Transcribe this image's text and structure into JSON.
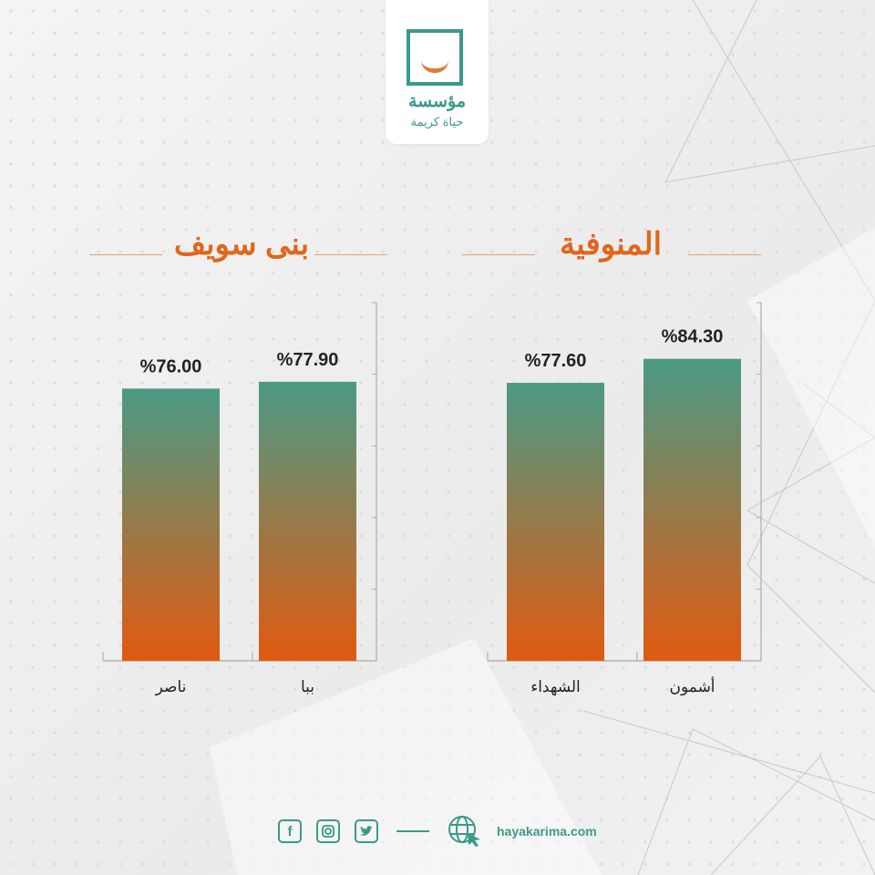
{
  "logo": {
    "line1": "مؤسسة",
    "line2": "حياة كريمة"
  },
  "colors": {
    "accent": "#e0661b",
    "teal": "#3a9a8a",
    "bar_top": "#4a9a85",
    "bar_bottom": "#e15a10"
  },
  "chart_data": [
    {
      "type": "bar",
      "title": "المنوفية",
      "categories": [
        "أشمون",
        "الشهداء"
      ],
      "values": [
        84.3,
        77.6
      ],
      "labels": [
        "%84.30",
        "%77.60"
      ],
      "ylim": [
        0,
        100
      ],
      "yticks": [
        0,
        20,
        40,
        60,
        80,
        100
      ],
      "axis_side": "right",
      "grid": false
    },
    {
      "type": "bar",
      "title": "بنى سويف",
      "categories": [
        "ببا",
        "ناصر"
      ],
      "values": [
        77.9,
        76.0
      ],
      "labels": [
        "%77.90",
        "%76.00"
      ],
      "ylim": [
        0,
        100
      ],
      "yticks": [
        0,
        20,
        40,
        60,
        80,
        100
      ],
      "axis_side": "right",
      "grid": false
    }
  ],
  "footer": {
    "icons": [
      "facebook-icon",
      "instagram-icon",
      "twitter-icon",
      "globe-cursor-icon"
    ],
    "facebook": "f",
    "website": "hayakarima.com"
  }
}
